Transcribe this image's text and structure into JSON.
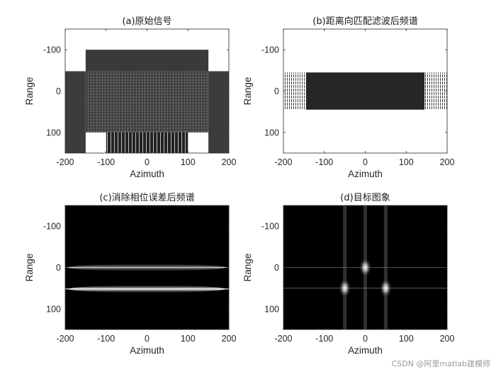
{
  "watermark": "CSDN @阿里matlab建模师",
  "chart_data": [
    {
      "type": "heatmap",
      "title": "(a)原始信号",
      "xlabel": "Azimuth",
      "ylabel": "Range",
      "xlim": [
        -200,
        200
      ],
      "ylim": [
        -150,
        150
      ],
      "y_reversed": true,
      "xticks": [
        -200,
        -100,
        0,
        100,
        200
      ],
      "yticks": [
        -100,
        0,
        100
      ],
      "background": "#ffffff",
      "regions": [
        {
          "x": [
            -200,
            -150
          ],
          "y": [
            -48,
            150
          ],
          "shade": "#3c3c3c"
        },
        {
          "x": [
            150,
            200
          ],
          "y": [
            -48,
            150
          ],
          "shade": "#3c3c3c"
        },
        {
          "x": [
            -150,
            150
          ],
          "y": [
            -100,
            -48
          ],
          "shade": "#3a3a3a"
        },
        {
          "x": [
            -150,
            150
          ],
          "y": [
            -48,
            100
          ],
          "shade": "#4a4a4a",
          "texture": "dense"
        },
        {
          "x": [
            -100,
            100
          ],
          "y": [
            100,
            150
          ],
          "shade": "#222222",
          "texture": "stripes"
        }
      ]
    },
    {
      "type": "heatmap",
      "title": "(b)距离向匹配滤波后频谱",
      "xlabel": "Azimuth",
      "ylabel": "Range",
      "xlim": [
        -200,
        200
      ],
      "ylim": [
        -150,
        150
      ],
      "y_reversed": true,
      "xticks": [
        -200,
        -100,
        0,
        100,
        200
      ],
      "yticks": [
        -100,
        0,
        100
      ],
      "background": "#ffffff",
      "regions": [
        {
          "x": [
            -145,
            145
          ],
          "y": [
            -45,
            45
          ],
          "shade": "#262626"
        },
        {
          "x": [
            -200,
            -145
          ],
          "y": [
            -45,
            45
          ],
          "shade": "#5a5a5a",
          "texture": "fringe"
        },
        {
          "x": [
            145,
            200
          ],
          "y": [
            -45,
            45
          ],
          "shade": "#5a5a5a",
          "texture": "fringe"
        }
      ]
    },
    {
      "type": "heatmap",
      "title": "(c)消除相位误差后频谱",
      "xlabel": "Azimuth",
      "ylabel": "Range",
      "xlim": [
        -200,
        200
      ],
      "ylim": [
        -150,
        150
      ],
      "y_reversed": true,
      "xticks": [
        -200,
        -100,
        0,
        100,
        200
      ],
      "yticks": [
        -100,
        0,
        100
      ],
      "background": "#000000",
      "bright_lines": [
        {
          "range": 0,
          "x": [
            -200,
            200
          ],
          "intensity": 0.6
        },
        {
          "range": 52,
          "x": [
            -200,
            200
          ],
          "intensity": 1.0
        }
      ]
    },
    {
      "type": "heatmap",
      "title": "(d)目标图象",
      "xlabel": "Azimuth",
      "ylabel": "Range",
      "xlim": [
        -200,
        200
      ],
      "ylim": [
        -150,
        150
      ],
      "y_reversed": true,
      "xticks": [
        -200,
        -100,
        0,
        100,
        200
      ],
      "yticks": [
        -100,
        0,
        100
      ],
      "background": "#000000",
      "targets": [
        {
          "azimuth": 0,
          "range": 0
        },
        {
          "azimuth": -50,
          "range": 50
        },
        {
          "azimuth": 50,
          "range": 50
        }
      ]
    }
  ]
}
